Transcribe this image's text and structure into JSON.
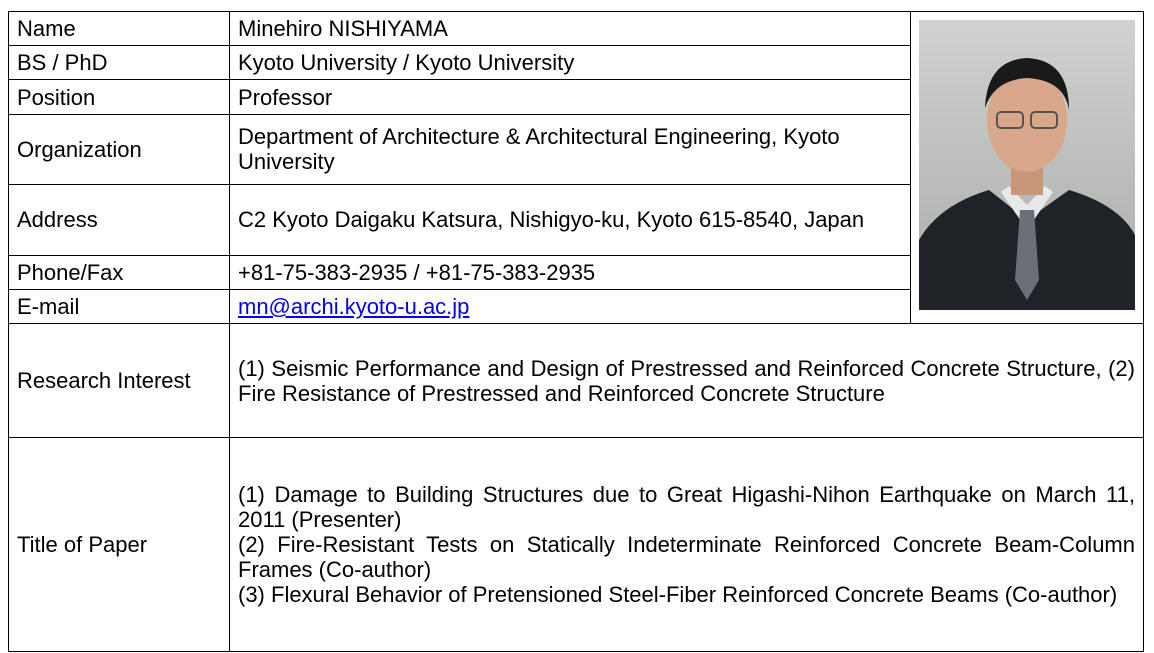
{
  "table": {
    "rows": [
      {
        "label": "Name",
        "value": "Minehiro NISHIYAMA"
      },
      {
        "label": "BS / PhD",
        "value": "Kyoto University / Kyoto University"
      },
      {
        "label": "Position",
        "value": "Professor"
      },
      {
        "label": "Organization",
        "value": "Department of Architecture & Architectural Engineering, Kyoto University"
      },
      {
        "label": "Address",
        "value": "C2 Kyoto Daigaku Katsura, Nishigyo-ku, Kyoto 615-8540, Japan"
      },
      {
        "label": "Phone/Fax",
        "value": "+81-75-383-2935 / +81-75-383-2935"
      },
      {
        "label": "E-mail",
        "value": "mn@archi.kyoto-u.ac.jp"
      }
    ],
    "research": {
      "label": "Research Interest",
      "value": "(1) Seismic Performance and Design of Prestressed and Reinforced Concrete Structure, (2) Fire Resistance of Prestressed and Reinforced Concrete Structure"
    },
    "papers": {
      "label": "Title of Paper",
      "items": [
        "(1) Damage to Building Structures due to Great Higashi-Nihon Earthquake on March 11, 2011 (Presenter)",
        "(2) Fire-Resistant Tests on Statically Indeterminate Reinforced Concrete Beam-Column Frames (Co-author)",
        "(3) Flexural Behavior of Pretensioned Steel-Fiber Reinforced Concrete Beams (Co-author)"
      ]
    }
  }
}
